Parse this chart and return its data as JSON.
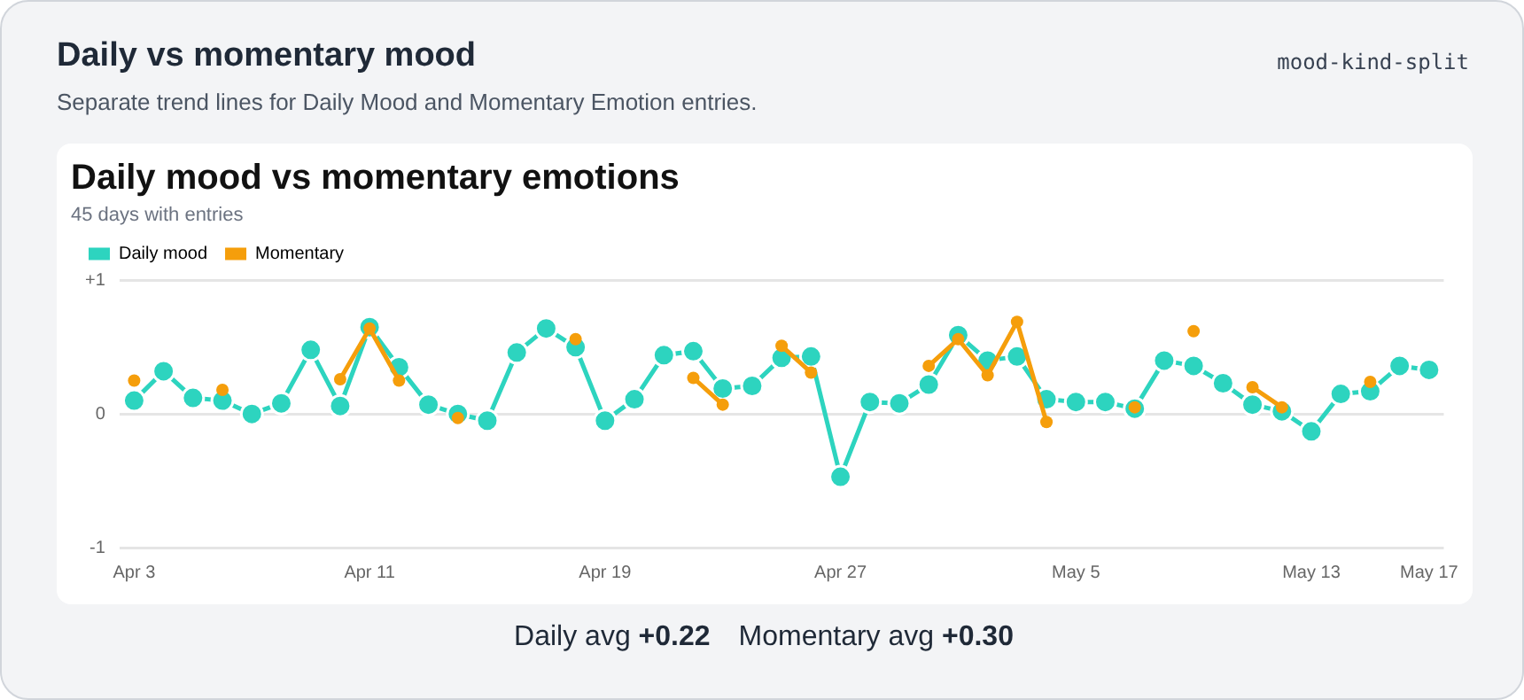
{
  "chart_data": {
    "type": "line",
    "title": "Daily mood vs momentary emotions",
    "subtitle": "45 days with entries",
    "annotations": [
      "Daily vs momentary mood",
      "Separate trend lines for Daily Mood and Momentary Emotion entries.",
      "mood-kind-split",
      "Daily avg +0.22",
      "Momentary avg +0.30"
    ],
    "categories": [
      "Apr 3",
      null,
      null,
      null,
      null,
      null,
      null,
      null,
      "Apr 11",
      null,
      null,
      null,
      null,
      null,
      null,
      null,
      "Apr 19",
      null,
      null,
      null,
      null,
      null,
      null,
      null,
      "Apr 27",
      null,
      null,
      null,
      null,
      null,
      null,
      null,
      "May 5",
      null,
      null,
      null,
      null,
      null,
      null,
      null,
      "May 13",
      null,
      null,
      null,
      "May 17"
    ],
    "series": [
      {
        "name": "Daily mood",
        "color": "#2dd4bf",
        "values": [
          0.1,
          0.32,
          0.12,
          0.1,
          0.0,
          0.08,
          0.48,
          0.06,
          0.65,
          0.35,
          0.07,
          0.0,
          -0.05,
          0.46,
          0.64,
          0.5,
          -0.05,
          0.11,
          0.44,
          0.47,
          0.19,
          0.21,
          0.42,
          0.43,
          -0.47,
          0.09,
          0.08,
          0.22,
          0.59,
          0.4,
          0.43,
          0.11,
          0.09,
          0.09,
          0.04,
          0.4,
          0.36,
          0.23,
          0.07,
          0.02,
          -0.13,
          0.15,
          0.17,
          0.36,
          0.33
        ]
      },
      {
        "name": "Momentary",
        "color": "#f59e0b",
        "values": [
          0.25,
          null,
          null,
          0.18,
          null,
          null,
          null,
          0.26,
          0.64,
          0.25,
          null,
          -0.03,
          null,
          null,
          null,
          0.56,
          null,
          null,
          null,
          0.27,
          0.07,
          null,
          0.51,
          0.31,
          null,
          null,
          null,
          0.36,
          0.56,
          0.29,
          0.69,
          -0.06,
          null,
          null,
          0.05,
          null,
          0.62,
          null,
          0.2,
          0.05,
          null,
          null,
          0.24,
          null,
          null
        ]
      }
    ],
    "ylim": [
      -1,
      1
    ],
    "yticks": [
      {
        "value": 1,
        "label": "+1"
      },
      0,
      -1
    ],
    "grid": "y",
    "legend": "top left",
    "marker": "circle",
    "line_style": "solid"
  }
}
